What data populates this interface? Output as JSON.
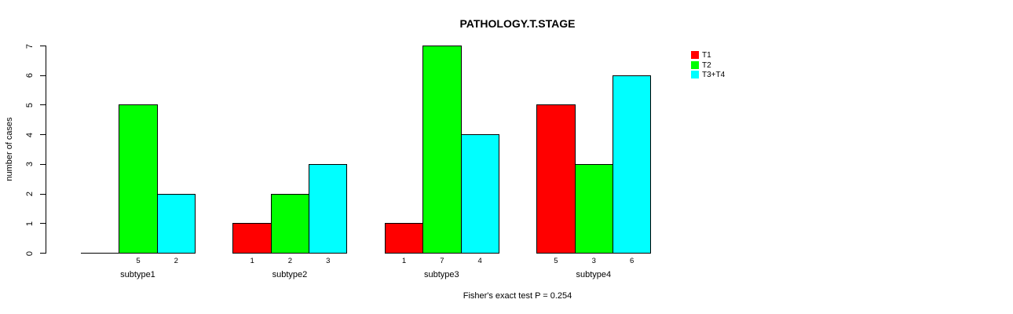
{
  "chart_data": {
    "type": "bar",
    "title": "PATHOLOGY.T.STAGE",
    "xlabel": "",
    "ylabel": "number of cases",
    "annotation": "Fisher's exact test P = 0.254",
    "ylim": [
      0,
      7
    ],
    "yticks": [
      0,
      1,
      2,
      3,
      4,
      5,
      6,
      7
    ],
    "grid": false,
    "legend_position": "right-outside",
    "categories": [
      "subtype1",
      "subtype2",
      "subtype3",
      "subtype4"
    ],
    "series": [
      {
        "name": "T1",
        "color": "#ff0000",
        "values": [
          0,
          1,
          1,
          5
        ]
      },
      {
        "name": "T2",
        "color": "#00ff00",
        "values": [
          5,
          2,
          7,
          3
        ]
      },
      {
        "name": "T3+T4",
        "color": "#00ffff",
        "values": [
          2,
          3,
          4,
          6
        ]
      }
    ],
    "bar_labels": [
      [
        "",
        "5",
        "2"
      ],
      [
        "1",
        "2",
        "3"
      ],
      [
        "1",
        "7",
        "4"
      ],
      [
        "5",
        "3",
        "6"
      ]
    ],
    "colors": {
      "bar_border": "#000000",
      "axis": "#000000",
      "text": "#000000",
      "background": "#ffffff"
    }
  }
}
